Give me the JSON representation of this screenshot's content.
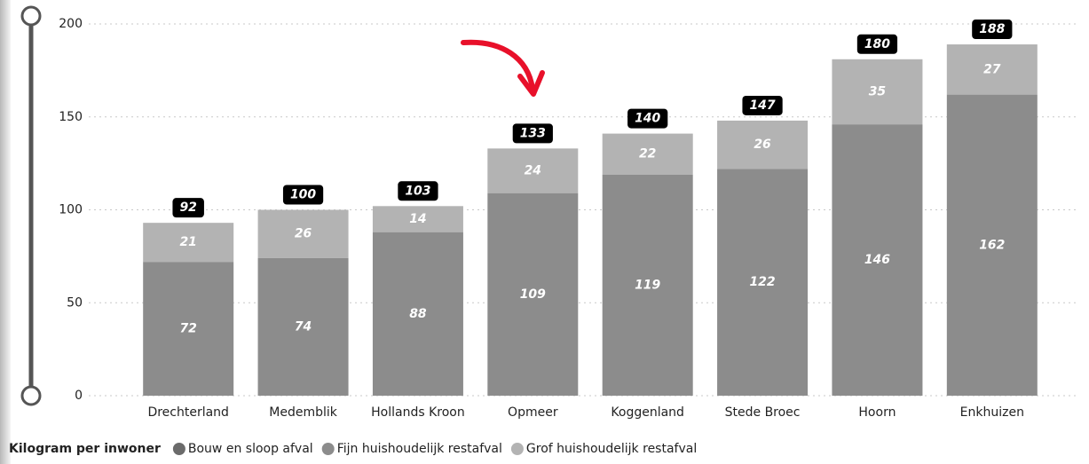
{
  "chart_data": {
    "type": "stacked-bar",
    "categories": [
      "Drechterland",
      "Medemblik",
      "Hollands Kroon",
      "Opmeer",
      "Koggenland",
      "Stede Broec",
      "Hoorn",
      "Enkhuizen"
    ],
    "series": [
      {
        "name": "Bouw en sloop afval",
        "color": "#6b6b6b",
        "values": [
          null,
          null,
          null,
          null,
          null,
          null,
          null,
          null
        ]
      },
      {
        "name": "Fijn huishoudelijk restafval",
        "color": "#8c8c8c",
        "values": [
          72,
          74,
          88,
          109,
          119,
          122,
          146,
          162
        ]
      },
      {
        "name": "Grof huishoudelijk restafval",
        "color": "#b3b3b3",
        "values": [
          21,
          26,
          14,
          24,
          22,
          26,
          35,
          27
        ]
      }
    ],
    "totals": [
      92,
      100,
      103,
      133,
      140,
      147,
      180,
      188
    ],
    "legend_title": "Kilogram per inwoner",
    "ylim": [
      0,
      200
    ],
    "yticks": [
      0,
      50,
      100,
      150,
      200
    ],
    "grid": true,
    "legend": "bottom-left"
  }
}
